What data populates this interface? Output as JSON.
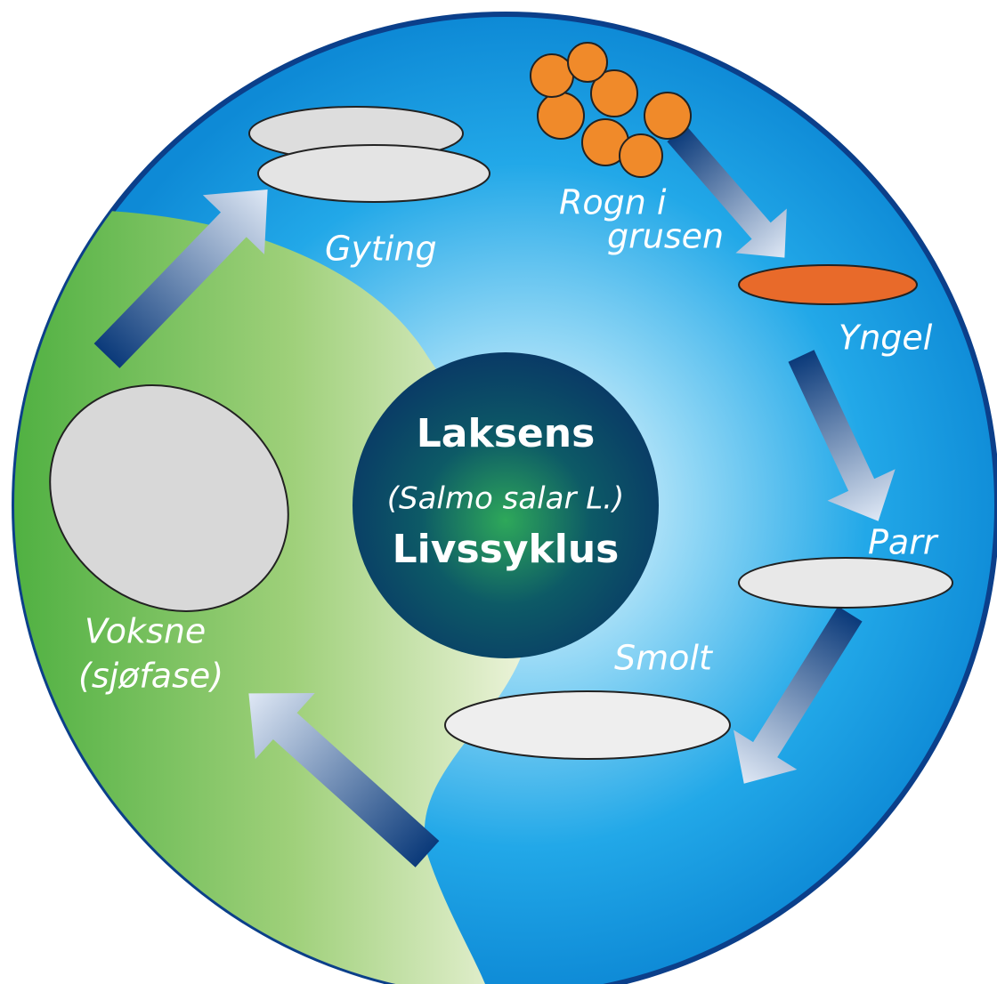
{
  "center": {
    "lines": [
      "Laksens",
      "(Salmo salar L.)",
      "Livssyklus"
    ]
  },
  "stages": [
    {
      "lines": [
        "Gyting"
      ]
    },
    {
      "lines": [
        "Rogn i",
        "grusen"
      ]
    },
    {
      "lines": [
        "Yngel"
      ]
    },
    {
      "lines": [
        "Parr"
      ]
    },
    {
      "lines": [
        "Smolt"
      ]
    },
    {
      "lines": [
        "Voksne",
        "(sjøfase)"
      ]
    }
  ]
}
